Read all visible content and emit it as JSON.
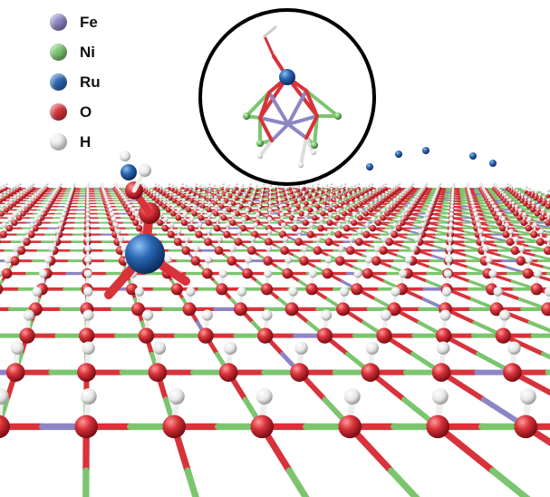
{
  "legend": [
    {
      "symbol": "Fe",
      "color": "#8c86c4"
    },
    {
      "symbol": "Ni",
      "color": "#7cc56f"
    },
    {
      "symbol": "Ru",
      "color": "#2a68b5"
    },
    {
      "symbol": "O",
      "color": "#d8323a"
    },
    {
      "symbol": "H",
      "color": "#f2f2f2"
    }
  ],
  "colors": {
    "fe": "#8c86c4",
    "ni": "#7cc56f",
    "ru": "#2a68b5",
    "o": "#d8323a",
    "h": "#f4f4f4"
  }
}
